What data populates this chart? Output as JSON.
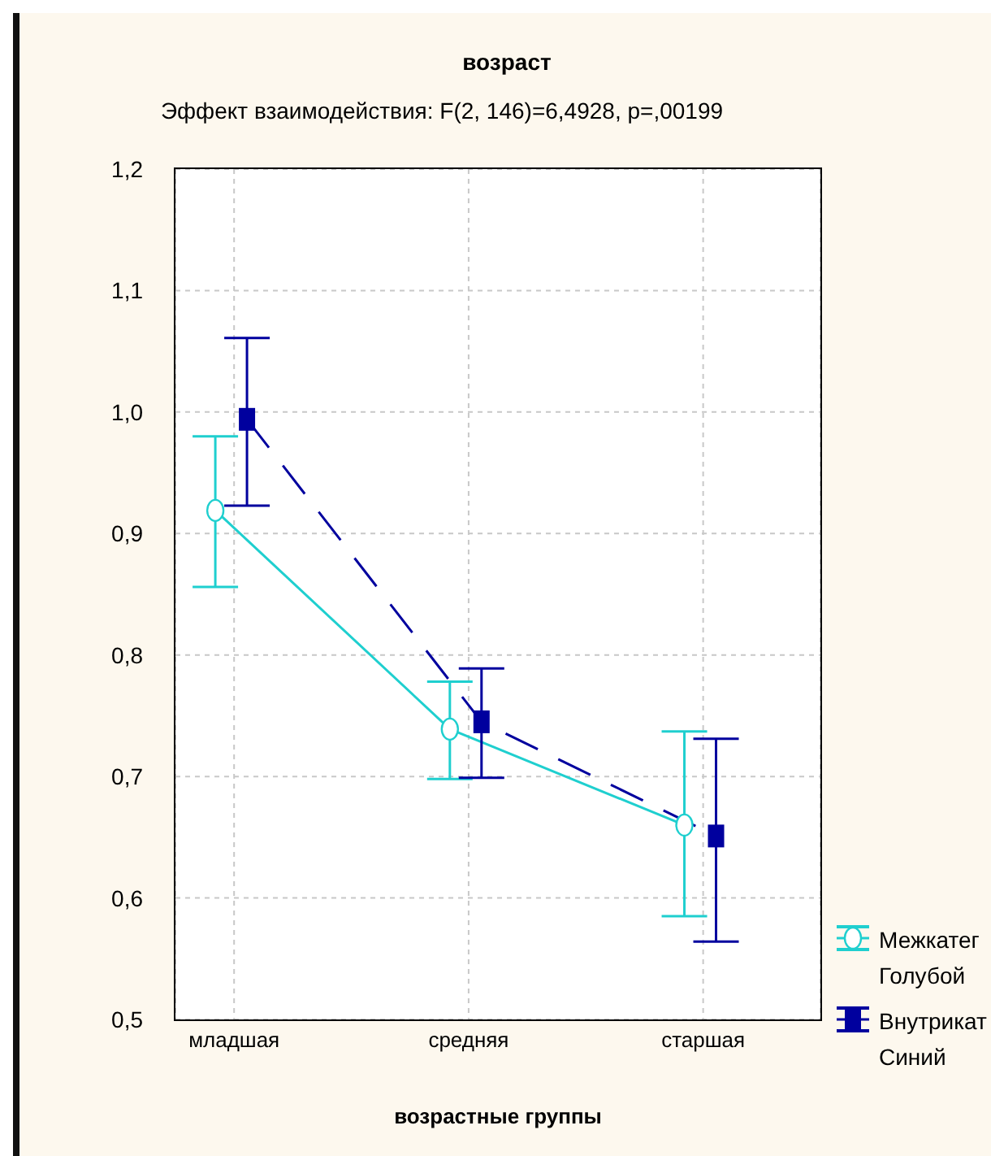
{
  "chart_data": {
    "type": "line",
    "title": "возраст",
    "subtitle": "Эффект взаимодействия: F(2, 146)=6,4928, p=,00199",
    "xlabel": "возрастные группы",
    "categories": [
      "младшая",
      "средняя",
      "старшая"
    ],
    "series": [
      {
        "name": "Межкатег Голубой",
        "color": "#1fcfcf",
        "values": [
          0.919,
          0.739,
          0.66
        ],
        "errors": [
          [
            0.856,
            0.98
          ],
          [
            0.698,
            0.778
          ],
          [
            0.585,
            0.737
          ]
        ],
        "marker": "circle",
        "line_style": "solid"
      },
      {
        "name": "Внутрикат Синий",
        "color": "#00009e",
        "values": [
          0.994,
          0.745,
          0.651
        ],
        "errors": [
          [
            0.923,
            1.061
          ],
          [
            0.699,
            0.789
          ],
          [
            0.564,
            0.731
          ]
        ],
        "marker": "square",
        "line_style": "dashed"
      }
    ],
    "ylim": [
      0.5,
      1.2
    ],
    "yticks": [
      {
        "value": 0.5,
        "label": "0,5"
      },
      {
        "value": 0.6,
        "label": "0,6"
      },
      {
        "value": 0.7,
        "label": "0,7"
      },
      {
        "value": 0.8,
        "label": "0,8"
      },
      {
        "value": 0.9,
        "label": "0,9"
      },
      {
        "value": 1.0,
        "label": "1,0"
      },
      {
        "value": 1.1,
        "label": "1,1"
      },
      {
        "value": 1.2,
        "label": "1,2"
      }
    ],
    "grid": true,
    "legend": "bottom right"
  }
}
